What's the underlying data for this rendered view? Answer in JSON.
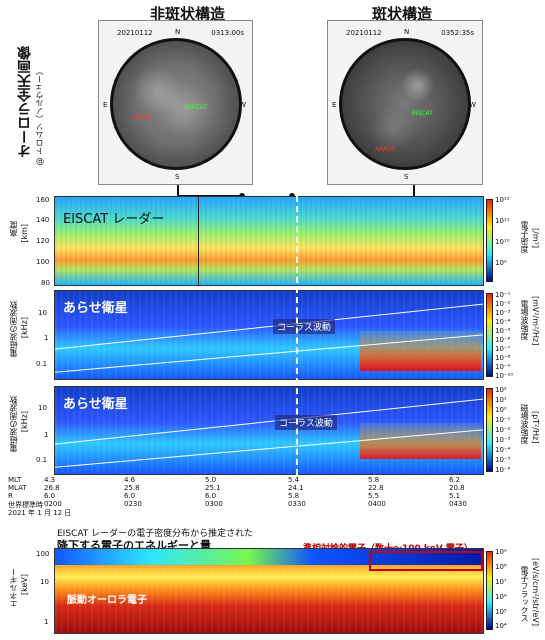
{
  "titles": {
    "left": "非斑状構造",
    "right": "斑状構造",
    "aurora_vertical": "オーロラ全天画像",
    "aurora_sub": "@ トロムソ（ノルウェー）"
  },
  "images": {
    "left": {
      "date": "20210112",
      "time": "0313:00s",
      "N": "N",
      "E": "E",
      "W": "W",
      "S": "S",
      "red_label": "ARASE",
      "green_label": "EISCAT"
    },
    "right": {
      "date": "20210112",
      "time": "0352:35s",
      "N": "N",
      "E": "E",
      "W": "W",
      "S": "S",
      "red_label": "ARASE",
      "green_label": "EISCAT"
    }
  },
  "radar": {
    "title": "EISCAT レーダー",
    "ylabel": "高度",
    "yunit": "[km]",
    "yticks": [
      "160",
      "140",
      "120",
      "100",
      "80"
    ],
    "cb_label": "電子密度",
    "cb_unit": "[/m³]",
    "cb_ticks": [
      "10¹²",
      "10¹¹",
      "10¹⁰",
      "10⁹"
    ]
  },
  "arase_e": {
    "title": "あらせ衛星",
    "ylabel": "電磁波の周波数",
    "yunit": "[kHz]",
    "yticks": [
      "10",
      "1",
      "0.1"
    ],
    "annotation": "コーラス波動",
    "cb_label": "電場波強度",
    "cb_unit": "[mV²/m²/Hz]",
    "cb_ticks": [
      "10⁻¹",
      "10⁻²",
      "10⁻³",
      "10⁻⁴",
      "10⁻⁵",
      "10⁻⁶",
      "10⁻⁷",
      "10⁻⁸",
      "10⁻⁹",
      "10⁻¹⁰"
    ]
  },
  "arase_b": {
    "title": "あらせ衛星",
    "ylabel": "電磁波の周波数",
    "yunit": "[kHz]",
    "yticks": [
      "10",
      "1",
      "0.1"
    ],
    "annotation": "コーラス波動",
    "cb_label": "磁場波強度",
    "cb_unit": "[pT²/Hz]",
    "cb_ticks": [
      "10²",
      "10¹",
      "10⁰",
      "10⁻¹",
      "10⁻²",
      "10⁻³",
      "10⁻⁴",
      "10⁻⁵",
      "10⁻⁶"
    ]
  },
  "time_axis": {
    "rows": [
      "MLT",
      "MLAT",
      "R",
      "世界標準時"
    ],
    "date": "2021 年 1 月 12 日",
    "columns": [
      {
        "mlt": "4.3",
        "mlat": "26.8",
        "r": "6.0",
        "ut": "0200"
      },
      {
        "mlt": "4.6",
        "mlat": "25.8",
        "r": "6.0",
        "ut": "0230"
      },
      {
        "mlt": "5.0",
        "mlat": "25.1",
        "r": "6.0",
        "ut": "0300"
      },
      {
        "mlt": "5.4",
        "mlat": "24.1",
        "r": "5.8",
        "ut": "0330"
      },
      {
        "mlt": "5.8",
        "mlat": "22.8",
        "r": "5.5",
        "ut": "0400"
      },
      {
        "mlt": "6.2",
        "mlat": "20.8",
        "r": "5.1",
        "ut": "0430"
      }
    ]
  },
  "electron": {
    "header1": "EISCAT レーダーの電子密度分布から推定された",
    "header2": "降下する電子のエネルギーと量",
    "highlight": "準相対論的電子（数十～100 keV 電子）",
    "inner_label": "脈動オーロラ電子",
    "ylabel": "エネルギー",
    "yunit": "[keV]",
    "yticks": [
      "100",
      "10",
      "1"
    ],
    "cb_label": "電子フラックス",
    "cb_unit": "[eV/s/cm²/str/eV]",
    "cb_ticks": [
      "10⁹",
      "10⁸",
      "10⁷",
      "10⁶",
      "10⁵",
      "10⁴"
    ]
  }
}
